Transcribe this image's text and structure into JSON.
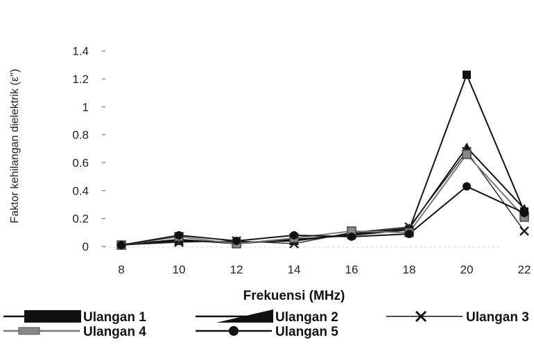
{
  "chart_data": {
    "type": "line",
    "xlabel": "Frekuensi (MHz)",
    "ylabel": "Faktor kehilangan dielektrik (ε'')",
    "x": [
      8,
      10,
      12,
      14,
      16,
      18,
      20,
      22
    ],
    "ylim": [
      0,
      1.4
    ],
    "yticks": [
      "0",
      "0.2",
      "0.4",
      "0.6",
      "0.8",
      "1",
      "1.2",
      "1.4"
    ],
    "xticks": [
      "8",
      "10",
      "12",
      "14",
      "16",
      "18",
      "20",
      "22"
    ],
    "grid": false,
    "legend_position": "bottom",
    "series": [
      {
        "name": "Ulangan 1",
        "marker": "square-filled",
        "color": "#111111",
        "values": [
          0.01,
          0.05,
          0.02,
          0.05,
          0.08,
          0.12,
          1.23,
          0.25
        ]
      },
      {
        "name": "Ulangan 2",
        "marker": "triangle-filled",
        "color": "#111111",
        "values": [
          0.01,
          0.04,
          0.03,
          0.04,
          0.09,
          0.13,
          0.71,
          0.27
        ]
      },
      {
        "name": "Ulangan 3",
        "marker": "x",
        "color": "#222222",
        "values": [
          0.01,
          0.03,
          0.04,
          0.02,
          0.1,
          0.14,
          0.68,
          0.11
        ]
      },
      {
        "name": "Ulangan 4",
        "marker": "square-grey",
        "color": "#777777",
        "values": [
          0.01,
          0.07,
          0.02,
          0.06,
          0.11,
          0.1,
          0.66,
          0.21
        ]
      },
      {
        "name": "Ulangan 5",
        "marker": "circle-filled",
        "color": "#111111",
        "values": [
          0.01,
          0.08,
          0.04,
          0.08,
          0.07,
          0.09,
          0.43,
          0.24
        ]
      }
    ]
  }
}
